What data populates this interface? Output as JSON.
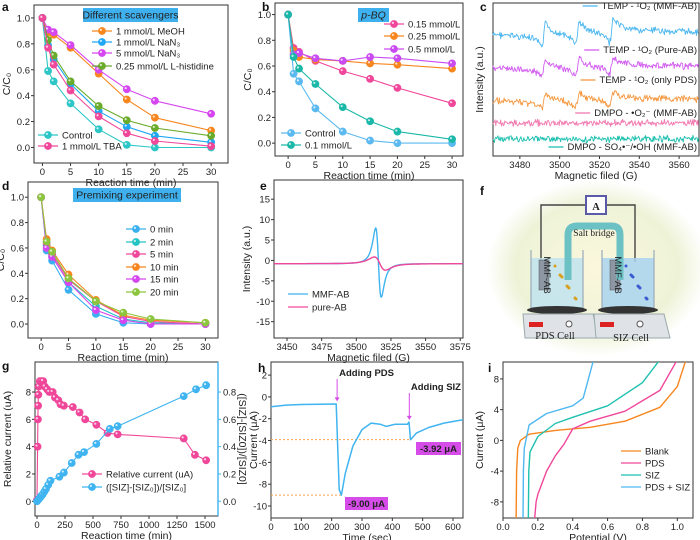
{
  "chart_data": [
    {
      "panel_label": "a",
      "type": "line",
      "title": "Different scavengers",
      "xlabel": "Reaction time (min)",
      "ylabel": "C/C₀",
      "xlim": [
        -1.5,
        33
      ],
      "ylim": [
        -0.12,
        1.1
      ],
      "xtick_labels": [
        "0",
        "5",
        "10",
        "15",
        "20",
        "25",
        "30"
      ],
      "ytick_labels": [
        "0.0",
        "0.2",
        "0.4",
        "0.6",
        "0.8",
        "1.0"
      ],
      "x": [
        0,
        1,
        2,
        5,
        10,
        15,
        20,
        30
      ],
      "series": [
        {
          "name": "1 mmol/L MeOH",
          "color": "#f7861e",
          "values": [
            1,
            0.89,
            0.87,
            0.77,
            0.57,
            0.37,
            0.23,
            0.13
          ]
        },
        {
          "name": "1 mmol/L NaN₃",
          "color": "#1ea7f2",
          "values": [
            1,
            0.79,
            0.68,
            0.49,
            0.28,
            0.16,
            0.09,
            0.04
          ]
        },
        {
          "name": "5 mmol/L NaN₃",
          "color": "#d646f0",
          "values": [
            1,
            0.91,
            0.89,
            0.79,
            0.6,
            0.45,
            0.36,
            0.26
          ]
        },
        {
          "name": "0.25 mmol/L L-histidine",
          "color": "#6aab2a",
          "values": [
            1,
            0.83,
            0.71,
            0.51,
            0.32,
            0.21,
            0.15,
            0.09
          ]
        },
        {
          "name": "Control",
          "color": "#2cc6c6",
          "values": [
            1,
            0.59,
            0.51,
            0.34,
            0.14,
            0.02,
            0.0,
            0.0
          ]
        },
        {
          "name": "1 mmol/L TBA",
          "color": "#f0479a",
          "values": [
            1,
            0.77,
            0.64,
            0.44,
            0.24,
            0.11,
            0.05,
            0.01
          ]
        }
      ],
      "legend": "top-right and bottom-left",
      "grid": false
    },
    {
      "panel_label": "b",
      "type": "line",
      "title": "p-BQ",
      "xlabel": "Reaction time (min)",
      "ylabel": "C/C₀",
      "xlim": [
        -2.4,
        32
      ],
      "ylim": [
        -0.1,
        1.09
      ],
      "xtick_labels": [
        "0",
        "5",
        "10",
        "15",
        "20",
        "25",
        "30"
      ],
      "ytick_labels": [
        "0.0",
        "0.2",
        "0.4",
        "0.6",
        "0.8",
        "1.0"
      ],
      "x": [
        0,
        1,
        2,
        5,
        10,
        15,
        20,
        30
      ],
      "series": [
        {
          "name": "0.15 mmol/L",
          "color": "#f0479a",
          "values": [
            1,
            0.74,
            0.71,
            0.64,
            0.56,
            0.5,
            0.43,
            0.31
          ]
        },
        {
          "name": "0.25 mmol/L",
          "color": "#f7861e",
          "values": [
            1,
            0.72,
            0.67,
            0.65,
            0.64,
            0.62,
            0.61,
            0.58
          ]
        },
        {
          "name": "0.5 mmol/L",
          "color": "#c94af0",
          "values": [
            1,
            0.69,
            0.7,
            0.66,
            0.64,
            0.67,
            0.66,
            0.62
          ]
        },
        {
          "name": "Control",
          "color": "#5ab9f0",
          "values": [
            1,
            0.54,
            0.48,
            0.27,
            0.09,
            0.02,
            0.0,
            0.0
          ]
        },
        {
          "name": "0.1 mmol/L",
          "color": "#1ab8a8",
          "values": [
            1,
            0.67,
            0.58,
            0.46,
            0.28,
            0.17,
            0.09,
            0.03
          ]
        }
      ],
      "legend": "top-right and bottom-left",
      "grid": false
    },
    {
      "panel_label": "c",
      "type": "line",
      "xlabel": "Magnetic filed (G)",
      "ylabel": "Intensity (a.u.)",
      "xlim": [
        3466.5,
        3570
      ],
      "xtick_labels": [
        "3480",
        "3500",
        "3520",
        "3540",
        "3560"
      ],
      "peak_fields": [
        3492,
        3509,
        3526
      ],
      "series": [
        {
          "name": "TEMP - ¹O₂ (MMF-AB)",
          "color": "#4fb8f0",
          "peak_amplitude": 1.0
        },
        {
          "name": "TEMP - ¹O₂ (Pure-AB)",
          "color": "#d25ef0",
          "peak_amplitude": 0.7
        },
        {
          "name": "TEMP - ¹O₂ (only PDS)",
          "color": "#f59a44",
          "peak_amplitude": 0.6
        },
        {
          "name": "DMPO - •O₂⁻ (MMF-AB)",
          "color": "#f27ab0",
          "peak_amplitude": 0
        },
        {
          "name": "DMPO - SO₄•⁻/•OH  (MMF-AB)",
          "color": "#1ec0b0",
          "peak_amplitude": 0
        }
      ],
      "legend": "above each trace, right",
      "grid": false
    },
    {
      "panel_label": "d",
      "type": "line",
      "title": "Premixing experiment",
      "xlabel": "Reaction time (min)",
      "ylabel": "C/C₀",
      "xlim": [
        -2.4,
        32.3
      ],
      "ylim": [
        -0.11,
        1.12
      ],
      "xtick_labels": [
        "0",
        "5",
        "10",
        "15",
        "20",
        "25",
        "30"
      ],
      "ytick_labels": [
        "0.0",
        "0.2",
        "0.4",
        "0.6",
        "0.8",
        "1.0"
      ],
      "x": [
        0,
        1,
        2,
        5,
        10,
        15,
        20,
        30
      ],
      "series": [
        {
          "name": "0 min",
          "color": "#3ab0f0",
          "values": [
            1,
            0.58,
            0.5,
            0.27,
            0.08,
            0.01,
            0.0,
            0.0
          ]
        },
        {
          "name": "2 min",
          "color": "#22c4c4",
          "values": [
            1,
            0.62,
            0.53,
            0.33,
            0.14,
            0.04,
            0.01,
            0.0
          ]
        },
        {
          "name": "5 min",
          "color": "#f0479a",
          "values": [
            1,
            0.64,
            0.55,
            0.35,
            0.18,
            0.06,
            0.02,
            0.0
          ]
        },
        {
          "name": "10 min",
          "color": "#f7861e",
          "values": [
            1,
            0.67,
            0.58,
            0.39,
            0.19,
            0.07,
            0.03,
            0.01
          ]
        },
        {
          "name": "15 min",
          "color": "#d646f0",
          "values": [
            1,
            0.6,
            0.53,
            0.33,
            0.11,
            0.03,
            0.0,
            0.0
          ]
        },
        {
          "name": "20 min",
          "color": "#8cc63e",
          "values": [
            1,
            0.65,
            0.57,
            0.36,
            0.18,
            0.09,
            0.04,
            0.01
          ]
        }
      ],
      "legend": "center-right",
      "grid": false
    },
    {
      "panel_label": "e",
      "type": "line",
      "xlabel": "Magnetic filed (G)",
      "ylabel": "Intensity (a.u.)",
      "xlim": [
        3440.6,
        3577
      ],
      "ylim": [
        -19,
        19.7
      ],
      "xtick_labels": [
        "3450",
        "3475",
        "3500",
        "3525",
        "3550",
        "3575"
      ],
      "ytick_labels": [
        "-15",
        "-10",
        "-5",
        "0",
        "5",
        "10",
        "15"
      ],
      "series": [
        {
          "name": "MMF-AB",
          "color": "#3fb4f0",
          "center": 3516,
          "max": 16.7,
          "min": -17.2,
          "max_at": 3514,
          "min_at": 3518,
          "baseline": -0.8
        },
        {
          "name": "pure-AB",
          "color": "#f0479a",
          "center": 3517,
          "max": 2.5,
          "min": -4.0,
          "max_at": 3513,
          "min_at": 3521,
          "baseline": -0.8
        }
      ],
      "legend": "bottom-left",
      "grid": false
    },
    {
      "panel_label": "g",
      "type": "line",
      "xlabel": "Reaction time (min)",
      "ylabel": "Relative current (uA)",
      "ylabel_right": "([SIZ]-[SIZ0])/[SIZ0]",
      "xlim": [
        -18,
        1616
      ],
      "ylim": [
        -1.08,
        10.2
      ],
      "ylim_right": [
        -0.108,
        1.02
      ],
      "xtick_labels": [
        "0",
        "250",
        "500",
        "750",
        "1000",
        "1250",
        "1500"
      ],
      "ytick_labels": [
        "0",
        "2",
        "4",
        "6",
        "8"
      ],
      "ytick_labels_right": [
        "0.0",
        "0.2",
        "0.4",
        "0.6",
        "0.8"
      ],
      "series": [
        {
          "name": "Relative current (uA)",
          "color": "#f0479a",
          "axis": "left",
          "x": [
            0,
            5,
            8,
            10,
            12,
            15,
            25,
            40,
            55,
            70,
            90,
            110,
            140,
            160,
            190,
            210,
            240,
            320,
            380,
            430,
            530,
            630,
            720,
            1310,
            1410,
            1510
          ],
          "values": [
            0.1,
            4,
            6,
            7,
            7.8,
            8.4,
            8.8,
            8.8,
            8.8,
            8.4,
            8.2,
            8.0,
            8.0,
            7.6,
            7.4,
            7.1,
            7.0,
            6.9,
            6.5,
            6.0,
            5.6,
            5.0,
            4.9,
            4.6,
            3.4,
            3.0
          ]
        },
        {
          "name": "([SIZ]-[SIZ₀])/[SIZ₀]",
          "color": "#3fb4f0",
          "axis": "right",
          "x": [
            0,
            10,
            20,
            30,
            40,
            50,
            65,
            80,
            100,
            120,
            200,
            240,
            310,
            370,
            420,
            530,
            650,
            720,
            1310,
            1420,
            1510
          ],
          "values": [
            0,
            0.01,
            0.02,
            0.03,
            0.04,
            0.05,
            0.07,
            0.09,
            0.12,
            0.15,
            0.18,
            0.21,
            0.28,
            0.34,
            0.36,
            0.42,
            0.53,
            0.55,
            0.77,
            0.82,
            0.85
          ]
        }
      ],
      "legend": "bottom-center",
      "grid": false
    },
    {
      "panel_label": "h",
      "type": "line",
      "xlabel": "Time (sec)",
      "ylabel": "Current (μA)",
      "xlim": [
        0,
        633
      ],
      "ylim": [
        -11.1,
        3.2
      ],
      "xtick_labels": [
        "0",
        "100",
        "200",
        "300",
        "400",
        "500",
        "600"
      ],
      "ytick_labels": [
        "2",
        "0",
        "-2",
        "-4",
        "-6",
        "-8",
        "-10"
      ],
      "series": [
        {
          "color": "#3fb4f0",
          "x": [
            0,
            50,
            100,
            215,
            218,
            225,
            232,
            245,
            270,
            300,
            330,
            360,
            380,
            410,
            450,
            455,
            460,
            480,
            520,
            570,
            633
          ],
          "values": [
            -0.9,
            -0.75,
            -0.7,
            -0.65,
            -3,
            -8.5,
            -9.0,
            -7,
            -4.5,
            -3,
            -2.4,
            -2.5,
            -2.7,
            -2.5,
            -2.5,
            -2.3,
            -3.92,
            -3.3,
            -2.8,
            -2.4,
            -2.1
          ]
        }
      ],
      "annotations": [
        {
          "text": "Adding PDS",
          "x": 218,
          "color": "#d64ce8"
        },
        {
          "text": "Adding SIZ",
          "x": 456,
          "color": "#d64ce8"
        }
      ],
      "reference_lines": [
        {
          "y": -9.0,
          "label": "-9.00 μA",
          "color": "#f7a24a"
        },
        {
          "y": -3.92,
          "label": "-3.92 μA",
          "color": "#f7a24a"
        }
      ],
      "grid": false
    },
    {
      "panel_label": "i",
      "type": "line",
      "xlabel": "Potential (V)",
      "ylabel": "Current (μA)",
      "xlim": [
        0,
        1.09
      ],
      "ylim": [
        -10.1,
        10.2
      ],
      "xtick_labels": [
        "0.0",
        "0.2",
        "0.4",
        "0.6",
        "0.8",
        "1.0"
      ],
      "ytick_labels": [
        "-8",
        "-4",
        "0",
        "4",
        "8"
      ],
      "series": [
        {
          "name": "Blank",
          "color": "#f7861e",
          "x": [
            0.075,
            0.078,
            0.085,
            0.1,
            0.15,
            0.3,
            0.5,
            0.7,
            0.9,
            1.0,
            1.05
          ],
          "values": [
            -10.5,
            -4,
            -1,
            0,
            0.8,
            1.3,
            1.7,
            2.5,
            4.3,
            7,
            10.5
          ]
        },
        {
          "name": "PDS",
          "color": "#f0479a",
          "x": [
            0.18,
            0.19,
            0.2,
            0.25,
            0.3,
            0.35,
            0.4,
            0.5,
            0.7,
            0.9,
            1.0
          ],
          "values": [
            -10.5,
            -8,
            -7,
            -4,
            -2,
            -0.5,
            1.5,
            2.5,
            3.8,
            6.5,
            10.5
          ]
        },
        {
          "name": "SIZ",
          "color": "#1ec0b0",
          "x": [
            0.145,
            0.148,
            0.155,
            0.2,
            0.3,
            0.4,
            0.6,
            0.8,
            0.9
          ],
          "values": [
            -10.5,
            -4,
            -1.5,
            0.5,
            2.2,
            3,
            4.5,
            7.5,
            10.5
          ]
        },
        {
          "name": "PDS + SIZ",
          "color": "#4fb8f0",
          "x": [
            0.115,
            0.117,
            0.122,
            0.15,
            0.25,
            0.4,
            0.46,
            0.49,
            0.52
          ],
          "values": [
            -10.5,
            -4,
            -1,
            2,
            3.5,
            4.5,
            5.5,
            8,
            10.5
          ]
        }
      ],
      "legend": "bottom-right",
      "grid": false
    }
  ],
  "illustration": {
    "panel_label": "f",
    "meter_label": "A",
    "salt_bridge_label": "Salt bridge",
    "left_cell_label": "PDS Cell",
    "right_cell_label": "SIZ Cell",
    "electrode_label": "MMF-AB"
  }
}
